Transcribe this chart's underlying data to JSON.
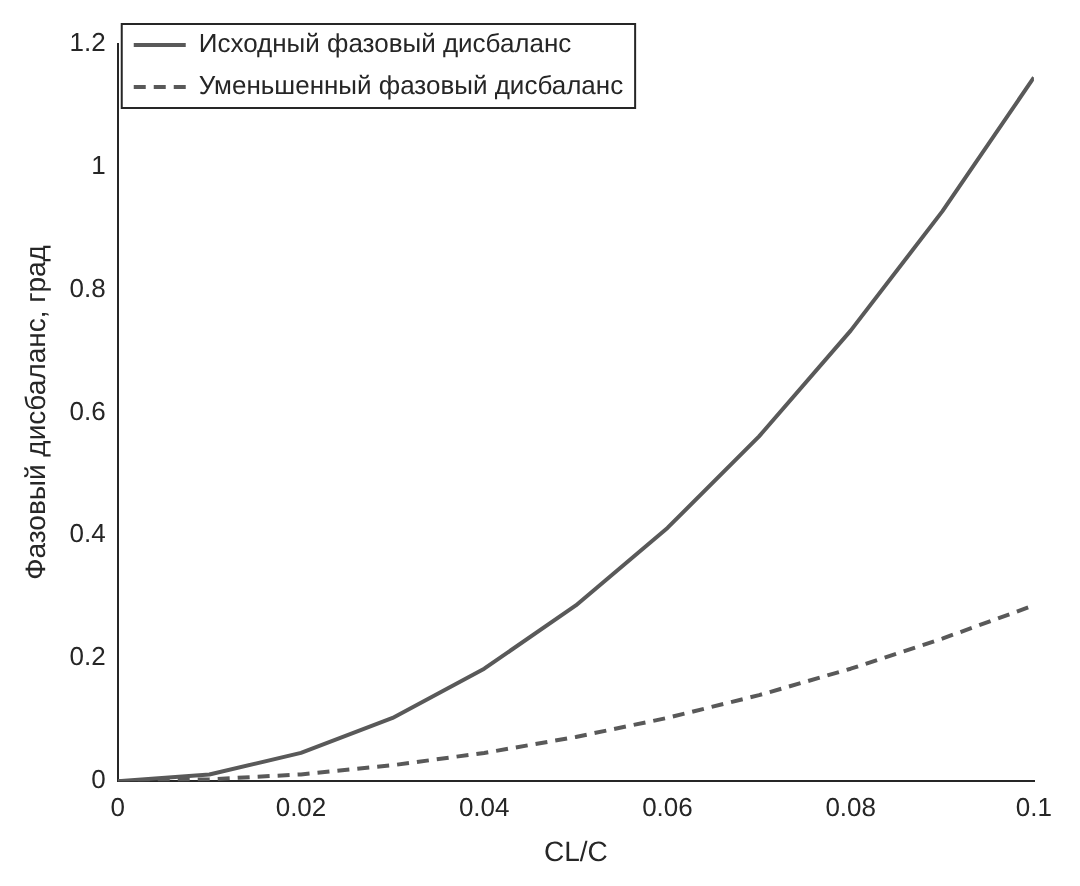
{
  "chart_data": {
    "type": "line",
    "xlabel": "CL/C",
    "ylabel": "Фазовый дисбаланс, град",
    "x": [
      0,
      0.01,
      0.02,
      0.03,
      0.04,
      0.05,
      0.06,
      0.07,
      0.08,
      0.09,
      0.1
    ],
    "series": [
      {
        "name": "Исходный фазовый дисбаланс",
        "color": "#595959",
        "line_style": "solid",
        "values": [
          0,
          0.011,
          0.046,
          0.103,
          0.183,
          0.286,
          0.412,
          0.561,
          0.733,
          0.927,
          1.145
        ]
      },
      {
        "name": "Уменьшенный фазовый дисбаланс",
        "color": "#595959",
        "line_style": "dashed",
        "values": [
          0,
          0.003,
          0.011,
          0.026,
          0.046,
          0.072,
          0.103,
          0.14,
          0.183,
          0.232,
          0.286
        ]
      }
    ],
    "xlim": [
      0,
      0.1
    ],
    "xticks": [
      0,
      0.02,
      0.04,
      0.06,
      0.08,
      0.1
    ],
    "ylim": [
      0,
      1.2
    ],
    "yticks": [
      0,
      0.2,
      0.4,
      0.6,
      0.8,
      1,
      1.2
    ],
    "grid": false,
    "legend": "top left",
    "marker": "none"
  }
}
